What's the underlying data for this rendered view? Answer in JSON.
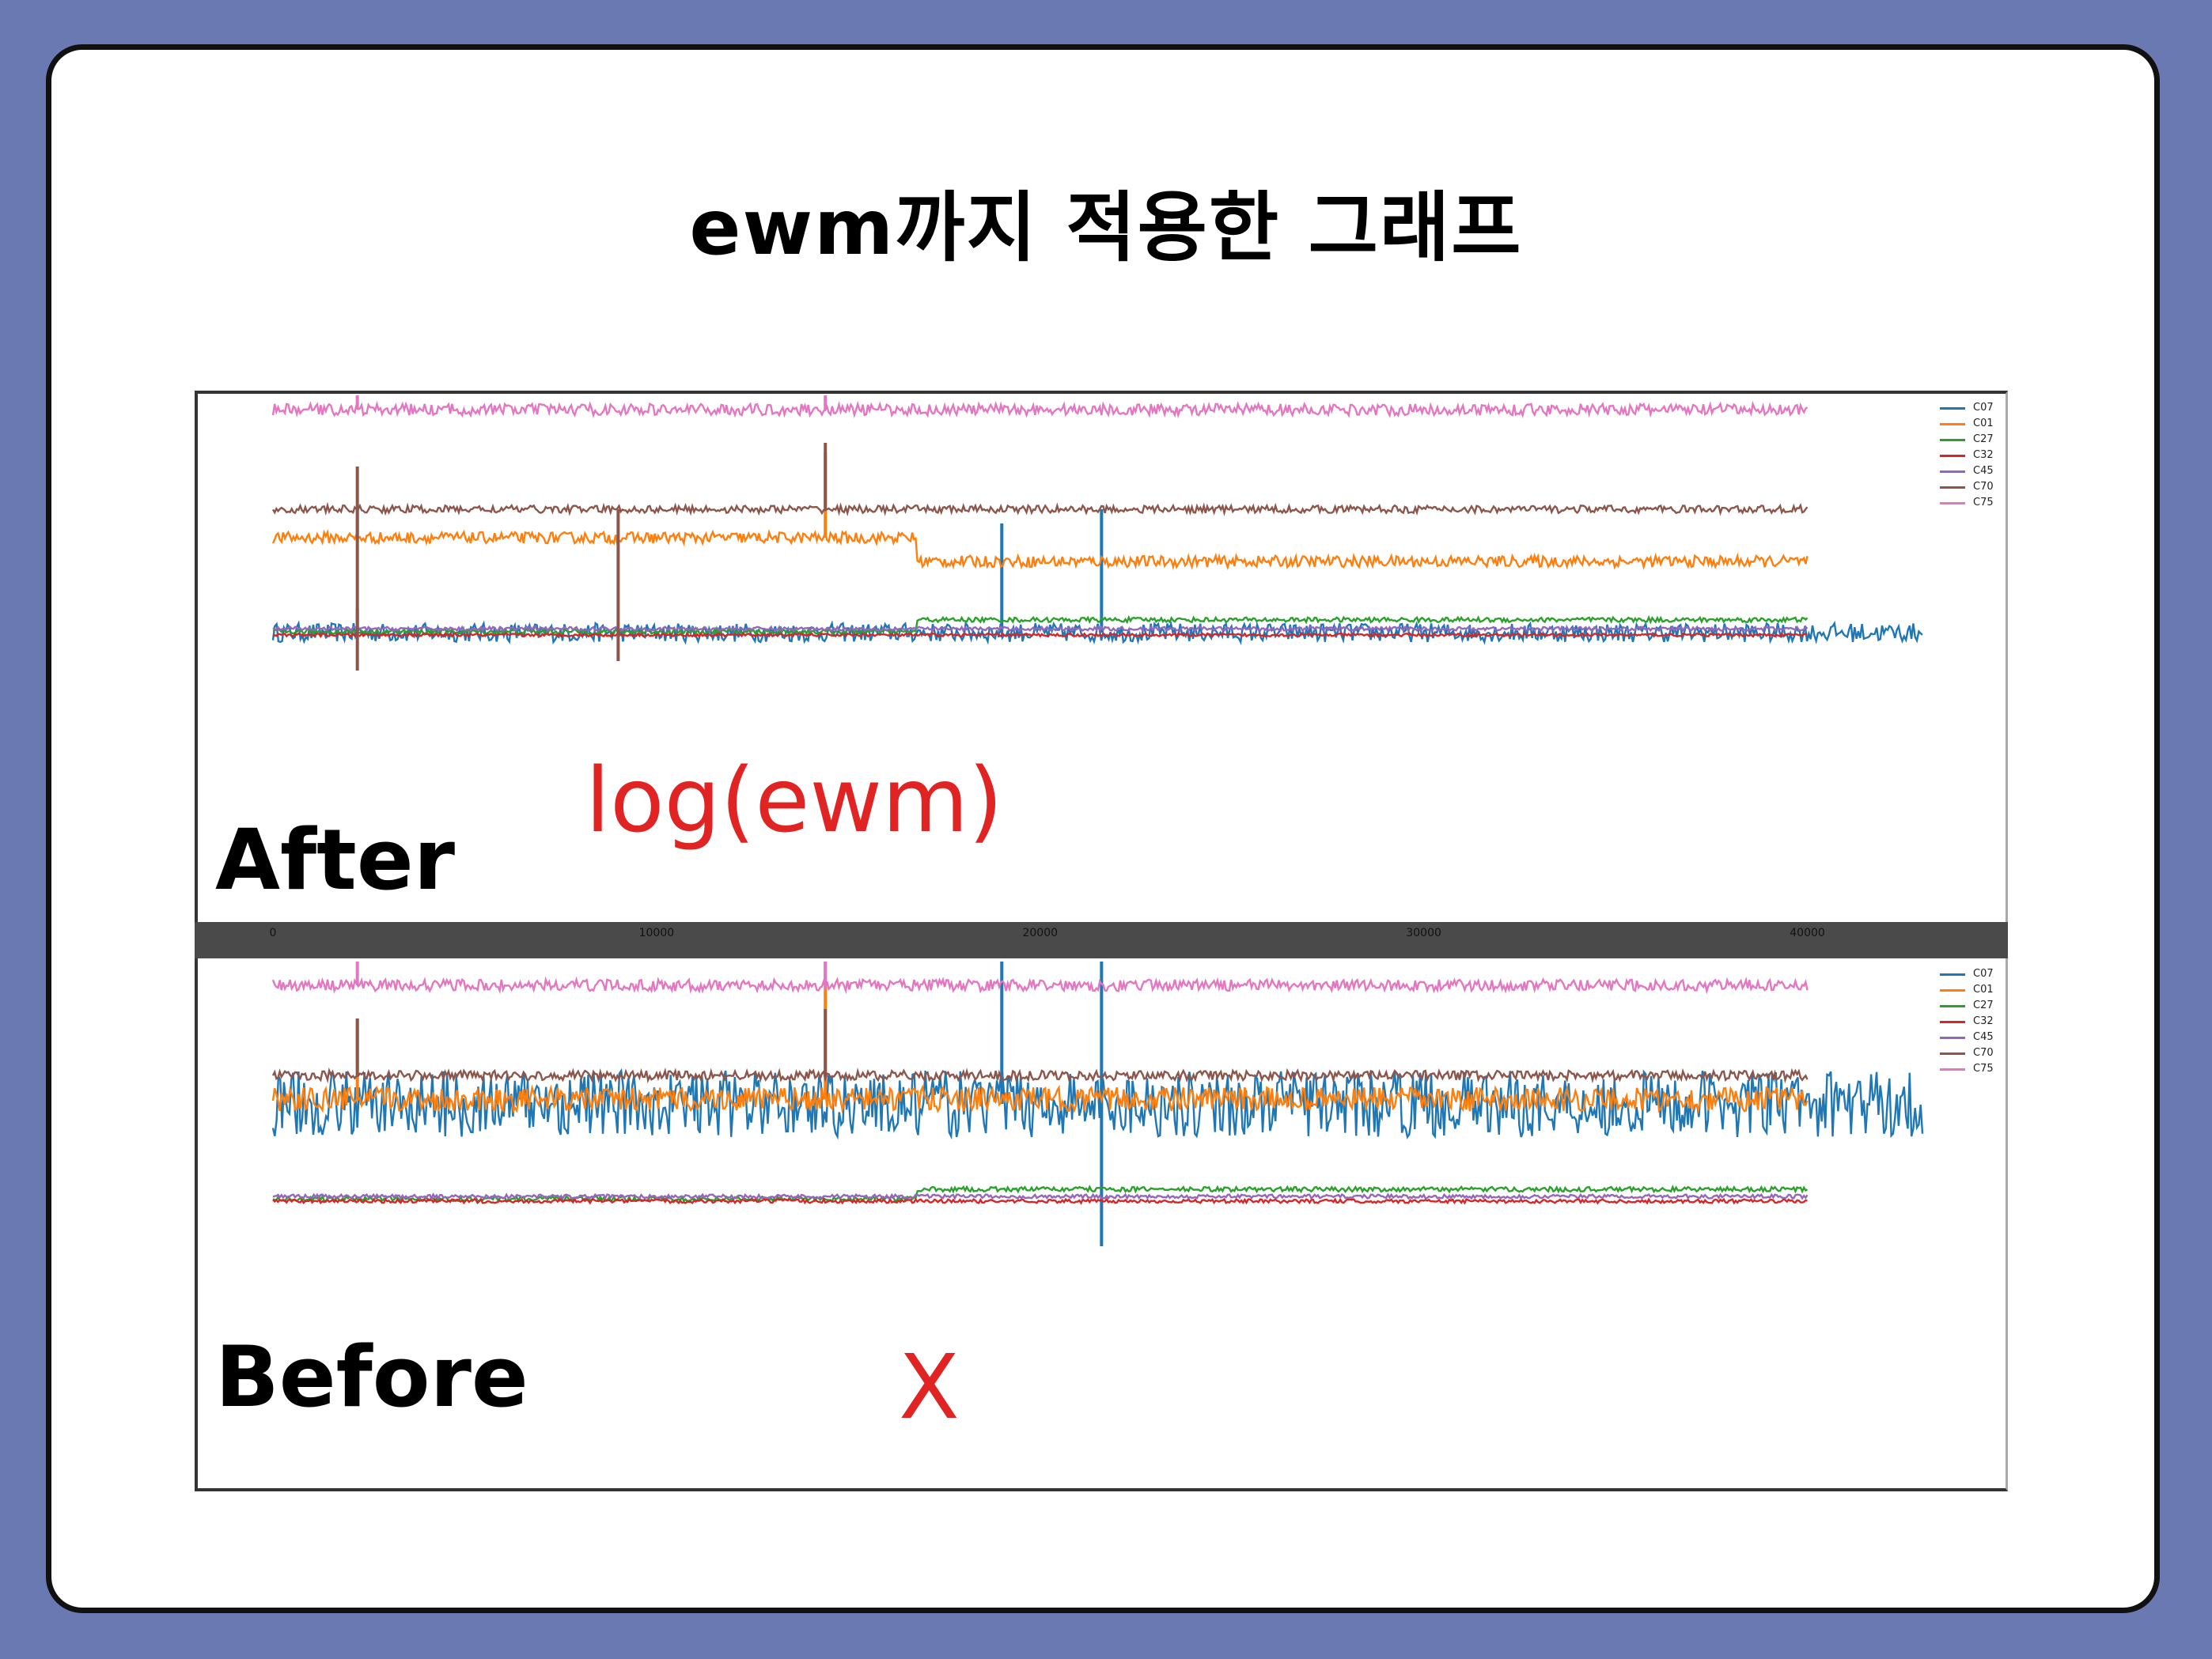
{
  "slide": {
    "title": "ewm까지 적용한 그래프"
  },
  "labels": {
    "after": "After",
    "before": "Before"
  },
  "annotations": {
    "after_note": "log(ewm)",
    "before_note": "X"
  },
  "colors": {
    "background": "#6b79b3",
    "annotation": "#e02424",
    "series": [
      "#1f77b4",
      "#ff7f0e",
      "#2ca02c",
      "#d62728",
      "#9467bd",
      "#8c564b",
      "#e377c2"
    ]
  },
  "chart_data": [
    {
      "type": "line",
      "panel": "after",
      "legend_position": "top-right",
      "grid": false,
      "x_ticks": [],
      "xlim": [
        0,
        43000
      ],
      "series": [
        {
          "name": "C07",
          "color": "#1f77b4",
          "level": 0.0,
          "noise": 0.2,
          "x_end": 43000,
          "spikes": [
            [
              2200,
              0.5
            ],
            [
              19000,
              2.3
            ],
            [
              21600,
              2.6
            ]
          ]
        },
        {
          "name": "C01",
          "color": "#ff7f0e",
          "level": 2.0,
          "noise": 0.12,
          "x_end": 40000,
          "spikes": [
            [
              2200,
              2.6
            ],
            [
              14400,
              3.8
            ]
          ],
          "step": [
            [
              16800,
              -0.5
            ]
          ]
        },
        {
          "name": "C27",
          "color": "#2ca02c",
          "level": 0.02,
          "noise": 0.05,
          "x_end": 40000,
          "step": [
            [
              16800,
              0.25
            ]
          ]
        },
        {
          "name": "C32",
          "color": "#d62728",
          "level": -0.05,
          "noise": 0.03,
          "x_end": 40000
        },
        {
          "name": "C45",
          "color": "#9467bd",
          "level": 0.08,
          "noise": 0.04,
          "x_end": 40000
        },
        {
          "name": "C70",
          "color": "#8c564b",
          "level": 2.6,
          "noise": 0.08,
          "x_end": 40000,
          "spikes": [
            [
              2200,
              3.5
            ],
            [
              14400,
              4.0
            ]
          ],
          "dips": [
            [
              2200,
              -0.8
            ],
            [
              9000,
              -0.6
            ]
          ]
        },
        {
          "name": "C75",
          "color": "#e377c2",
          "level": 4.7,
          "noise": 0.12,
          "x_end": 40000,
          "spikes": [
            [
              2200,
              5.5
            ],
            [
              14400,
              6.0
            ]
          ]
        }
      ]
    },
    {
      "type": "line",
      "panel": "before",
      "legend_position": "top-right",
      "grid": false,
      "x_ticks": [
        "0",
        "10000",
        "20000",
        "30000",
        "40000"
      ],
      "xlim": [
        0,
        43000
      ],
      "series": [
        {
          "name": "C07",
          "color": "#1f77b4",
          "level": 2.0,
          "noise": 0.7,
          "x_end": 43000,
          "spikes": [
            [
              19000,
              5.0
            ],
            [
              21600,
              5.0
            ],
            [
              21600,
              -1.0
            ]
          ]
        },
        {
          "name": "C01",
          "color": "#ff7f0e",
          "level": 2.1,
          "noise": 0.25,
          "x_end": 40000,
          "spikes": [
            [
              2200,
              3.8
            ],
            [
              14400,
              5.0
            ]
          ]
        },
        {
          "name": "C27",
          "color": "#2ca02c",
          "level": 0.0,
          "noise": 0.05,
          "x_end": 40000,
          "step": [
            [
              16800,
              0.2
            ]
          ]
        },
        {
          "name": "C32",
          "color": "#d62728",
          "level": -0.05,
          "noise": 0.04,
          "x_end": 40000
        },
        {
          "name": "C45",
          "color": "#9467bd",
          "level": 0.05,
          "noise": 0.04,
          "x_end": 40000
        },
        {
          "name": "C70",
          "color": "#8c564b",
          "level": 2.6,
          "noise": 0.1,
          "x_end": 40000,
          "spikes": [
            [
              2200,
              3.8
            ],
            [
              14400,
              4.0
            ]
          ]
        },
        {
          "name": "C75",
          "color": "#e377c2",
          "level": 4.5,
          "noise": 0.12,
          "x_end": 40000,
          "spikes": [
            [
              2200,
              5.5
            ],
            [
              14400,
              5.8
            ]
          ]
        }
      ]
    }
  ]
}
